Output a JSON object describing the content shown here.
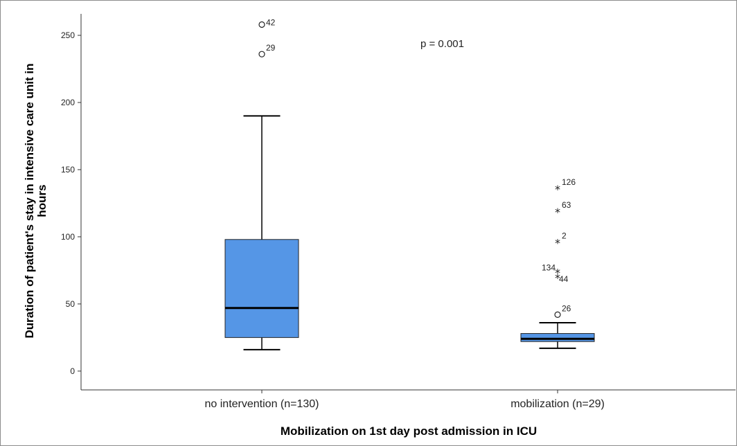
{
  "chart_data": {
    "type": "boxplot",
    "title": "",
    "xlabel": "Mobilization on 1st day post admission in ICU",
    "ylabel": "Duration of patient's stay in intensive care unit in hours",
    "ylabel_lines": [
      "Duration of patient's stay in intensive care unit in",
      "hours"
    ],
    "ylim": [
      -14,
      266
    ],
    "yticks": [
      0,
      50,
      100,
      150,
      200,
      250
    ],
    "grid": false,
    "legend": "none",
    "box_color": "#5596e6",
    "annotation": "p = 0.001",
    "categories": [
      "no intervention (n=130)",
      "mobilization (n=29)"
    ],
    "boxes": [
      {
        "category": "no intervention (n=130)",
        "whisker_low": 16,
        "q1": 25,
        "median": 47,
        "q3": 98,
        "whisker_high": 190,
        "outliers": [
          {
            "value": 236,
            "label": "29",
            "marker": "circle"
          },
          {
            "value": 258,
            "label": "42",
            "marker": "circle"
          }
        ]
      },
      {
        "category": "mobilization (n=29)",
        "whisker_low": 17,
        "q1": 22,
        "median": 24,
        "q3": 28,
        "whisker_high": 36,
        "outliers": [
          {
            "value": 42,
            "label": "26",
            "marker": "circle"
          },
          {
            "value": 70,
            "label": "44",
            "marker": "star"
          },
          {
            "value": 74,
            "label": "134",
            "marker": "star"
          },
          {
            "value": 96,
            "label": "2",
            "marker": "star"
          },
          {
            "value": 119,
            "label": "63",
            "marker": "star"
          },
          {
            "value": 136,
            "label": "126",
            "marker": "star"
          }
        ]
      }
    ]
  }
}
